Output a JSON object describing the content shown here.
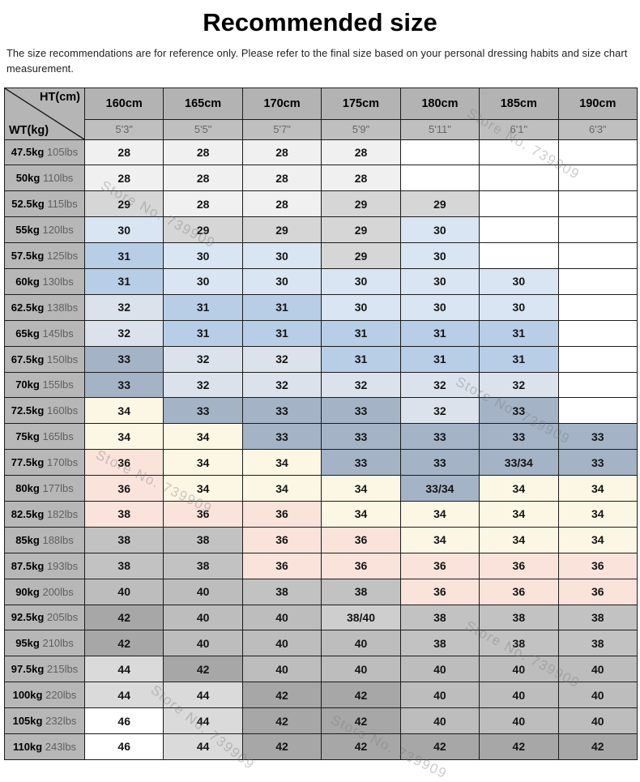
{
  "title": "Recommended size",
  "description": "The size recommendations are for reference only. Please refer to the final size based on your personal dressing habits and size chart measurement.",
  "watermark": {
    "text": "Store No. 739909"
  },
  "chart_data": {
    "type": "table",
    "corner": {
      "ht": "HT(cm)",
      "wt": "WT(kg)"
    },
    "columns": [
      {
        "cm": "160cm",
        "ft": "5'3\""
      },
      {
        "cm": "165cm",
        "ft": "5'5\""
      },
      {
        "cm": "170cm",
        "ft": "5'7\""
      },
      {
        "cm": "175cm",
        "ft": "5'9\""
      },
      {
        "cm": "180cm",
        "ft": "5'11\""
      },
      {
        "cm": "185cm",
        "ft": "6'1\""
      },
      {
        "cm": "190cm",
        "ft": "6'3\""
      }
    ],
    "rows": [
      {
        "kg": "47.5kg",
        "lbs": "105lbs",
        "values": [
          "28",
          "28",
          "28",
          "28",
          "",
          "",
          ""
        ]
      },
      {
        "kg": "50kg",
        "lbs": "110lbs",
        "values": [
          "28",
          "28",
          "28",
          "28",
          "",
          "",
          ""
        ]
      },
      {
        "kg": "52.5kg",
        "lbs": "115lbs",
        "values": [
          "29",
          "28",
          "28",
          "29",
          "29",
          "",
          ""
        ]
      },
      {
        "kg": "55kg",
        "lbs": "120lbs",
        "values": [
          "30",
          "29",
          "29",
          "29",
          "30",
          "",
          ""
        ]
      },
      {
        "kg": "57.5kg",
        "lbs": "125lbs",
        "values": [
          "31",
          "30",
          "30",
          "29",
          "30",
          "",
          ""
        ]
      },
      {
        "kg": "60kg",
        "lbs": "130lbs",
        "values": [
          "31",
          "30",
          "30",
          "30",
          "30",
          "30",
          ""
        ]
      },
      {
        "kg": "62.5kg",
        "lbs": "138lbs",
        "values": [
          "32",
          "31",
          "31",
          "30",
          "30",
          "30",
          ""
        ]
      },
      {
        "kg": "65kg",
        "lbs": "145lbs",
        "values": [
          "32",
          "31",
          "31",
          "31",
          "31",
          "31",
          ""
        ]
      },
      {
        "kg": "67.5kg",
        "lbs": "150lbs",
        "values": [
          "33",
          "32",
          "32",
          "31",
          "31",
          "31",
          ""
        ]
      },
      {
        "kg": "70kg",
        "lbs": "155lbs",
        "values": [
          "33",
          "32",
          "32",
          "32",
          "32",
          "32",
          ""
        ]
      },
      {
        "kg": "72.5kg",
        "lbs": "160lbs",
        "values": [
          "34",
          "33",
          "33",
          "33",
          "32",
          "33",
          ""
        ]
      },
      {
        "kg": "75kg",
        "lbs": "165lbs",
        "values": [
          "34",
          "34",
          "33",
          "33",
          "33",
          "33",
          "33"
        ]
      },
      {
        "kg": "77.5kg",
        "lbs": "170lbs",
        "values": [
          "36",
          "34",
          "34",
          "33",
          "33",
          "33/34",
          "33"
        ]
      },
      {
        "kg": "80kg",
        "lbs": "177lbs",
        "values": [
          "36",
          "34",
          "34",
          "34",
          "33/34",
          "34",
          "34"
        ]
      },
      {
        "kg": "82.5kg",
        "lbs": "182lbs",
        "values": [
          "38",
          "36",
          "36",
          "34",
          "34",
          "34",
          "34"
        ]
      },
      {
        "kg": "85kg",
        "lbs": "188lbs",
        "values": [
          "38",
          "38",
          "36",
          "36",
          "34",
          "34",
          "34"
        ]
      },
      {
        "kg": "87.5kg",
        "lbs": "193lbs",
        "values": [
          "38",
          "38",
          "36",
          "36",
          "36",
          "36",
          "36"
        ]
      },
      {
        "kg": "90kg",
        "lbs": "200lbs",
        "values": [
          "40",
          "40",
          "38",
          "38",
          "36",
          "36",
          "36"
        ]
      },
      {
        "kg": "92.5kg",
        "lbs": "205lbs",
        "values": [
          "42",
          "40",
          "40",
          "38/40",
          "38",
          "38",
          "38"
        ]
      },
      {
        "kg": "95kg",
        "lbs": "210lbs",
        "values": [
          "42",
          "40",
          "40",
          "40",
          "38",
          "38",
          "38"
        ]
      },
      {
        "kg": "97.5kg",
        "lbs": "215lbs",
        "values": [
          "44",
          "42",
          "40",
          "40",
          "40",
          "40",
          "40"
        ]
      },
      {
        "kg": "100kg",
        "lbs": "220lbs",
        "values": [
          "44",
          "44",
          "42",
          "42",
          "40",
          "40",
          "40"
        ]
      },
      {
        "kg": "105kg",
        "lbs": "232lbs",
        "values": [
          "46",
          "44",
          "42",
          "42",
          "40",
          "40",
          "40"
        ]
      },
      {
        "kg": "110kg",
        "lbs": "243lbs",
        "values": [
          "46",
          "44",
          "42",
          "42",
          "42",
          "42",
          "42"
        ]
      }
    ],
    "size_colors": {
      "28": "#f0f0f0",
      "29": "#d6d6d6",
      "30": "#d9e5f2",
      "31": "#b8cde6",
      "32": "#dbe2eb",
      "33": "#a4b3c6",
      "33/34": "#a4b3c6",
      "34": "#fcf7e4",
      "36": "#fae3db",
      "38": "#c2c2c2",
      "38/40": "#cecece",
      "40": "#bdbdbd",
      "42": "#a7a7a7",
      "44": "#dadada",
      "46": "#ffffff"
    },
    "cell_color_overrides": {
      "14,0": "#fae3db"
    },
    "empty_cell_color": "#ffffff",
    "header_colors": {
      "cm_row": "#b3b3b3",
      "ft_row": "#bfbfbf",
      "corner": "#b5b5b5",
      "row_label": "#b7b7b7"
    }
  }
}
